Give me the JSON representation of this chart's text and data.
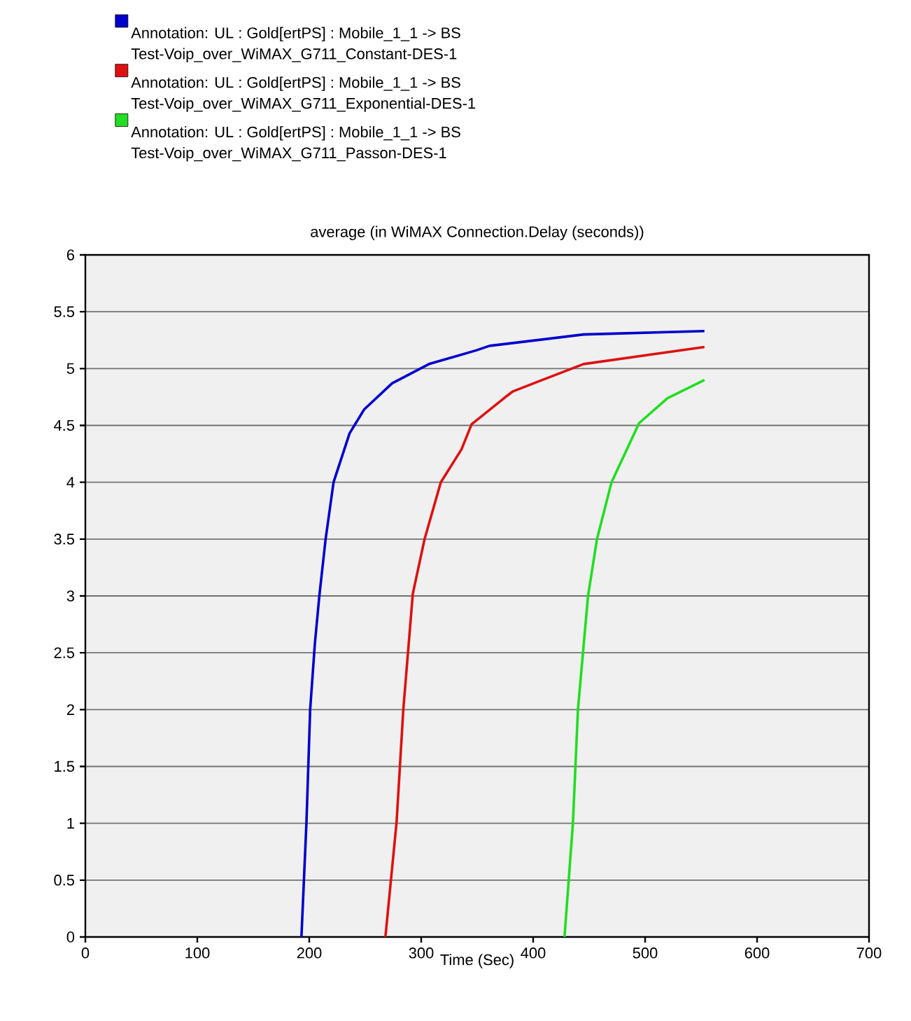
{
  "chart_data": {
    "type": "line",
    "title": "average (in WiMAX Connection.Delay (seconds))",
    "xlabel": "Time (Sec)",
    "xlim": [
      0,
      700
    ],
    "xticks": [
      0,
      100,
      200,
      300,
      400,
      500,
      600,
      700
    ],
    "ylim": [
      0,
      6
    ],
    "yticks": [
      0,
      0.5,
      1,
      1.5,
      2,
      2.5,
      3,
      3.5,
      4,
      4.5,
      5,
      5.5,
      6
    ],
    "grid": "y",
    "legend": "top",
    "line_style": "solid",
    "series": [
      {
        "name": "Annotation: UL : Gold[ertPS] : Mobile_1_1 -> BS Test-Voip_over_WiMAX_G711_Constant-DES-1",
        "color": "#0000cc",
        "x": [
          193,
          197.5,
          200.8,
          205,
          209,
          214.6,
          221.7,
          236,
          249,
          274,
          307,
          349,
          361,
          445,
          553
        ],
        "values": [
          0,
          1.01,
          2.0,
          2.58,
          3.0,
          3.5,
          4.0,
          4.43,
          4.64,
          4.87,
          5.04,
          5.16,
          5.2,
          5.3,
          5.33
        ]
      },
      {
        "name": "Annotation: UL : Gold[ertPS] : Mobile_1_1 -> BS Test-Voip_over_WiMAX_G711_Exponential-DES-1",
        "color": "#dd1111",
        "x": [
          268,
          278,
          284,
          292.5,
          303,
          317.5,
          336,
          345,
          374,
          382,
          445,
          553
        ],
        "values": [
          0,
          1.01,
          2.0,
          3.02,
          3.5,
          4.0,
          4.29,
          4.51,
          4.74,
          4.8,
          5.04,
          5.19
        ]
      },
      {
        "name": "Annotation: UL : Gold[ertPS] : Mobile_1_1 -> BS Test-Voip_over_WiMAX_G711_Passon-DES-1",
        "color": "#22dd22",
        "x": [
          428,
          435.5,
          440,
          449,
          457,
          470,
          494.6,
          520,
          553
        ],
        "values": [
          0,
          1.0,
          2.0,
          3.0,
          3.5,
          4.0,
          4.52,
          4.74,
          4.9
        ]
      }
    ]
  }
}
